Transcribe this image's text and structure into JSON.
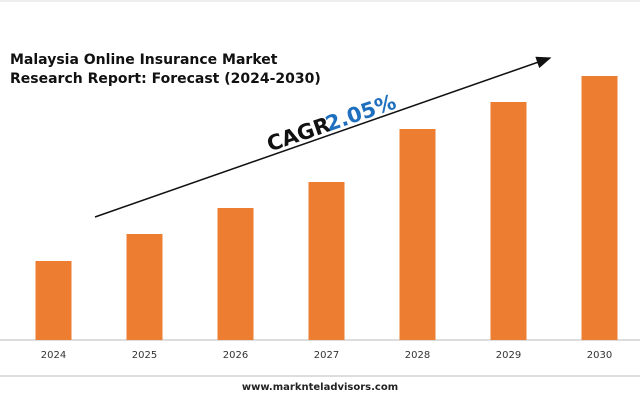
{
  "chart_data": {
    "type": "bar",
    "title": [
      "Malaysia Online Insurance Market",
      "Research Report: Forecast (2024-2030)"
    ],
    "annotation": {
      "prefix": "CAGR",
      "value": "2.05%"
    },
    "footer": "www.marknteladvisors.com",
    "categories": [
      "2024",
      "2025",
      "2026",
      "2027",
      "2028",
      "2029",
      "2030"
    ],
    "values": [
      79,
      106,
      132,
      158,
      211,
      238,
      264
    ],
    "color": "#ed7d31",
    "ylim": [
      0,
      300
    ]
  }
}
